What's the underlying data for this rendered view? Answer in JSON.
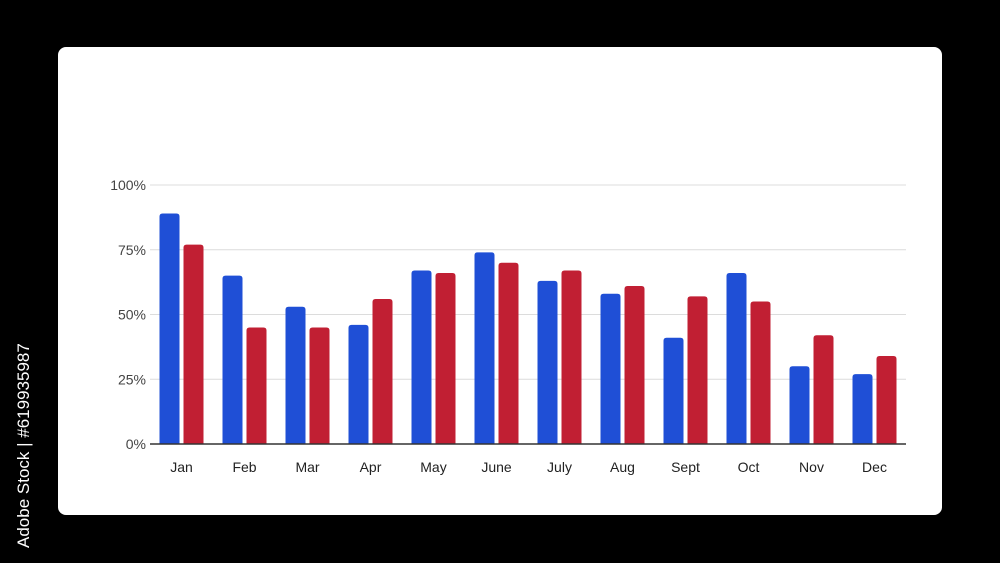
{
  "side_text": "Adobe Stock | #619935987",
  "colors": {
    "background": "#000000",
    "card": "#ffffff",
    "grid": "#dcdcdc",
    "axis": "#333333"
  },
  "chart_data": {
    "type": "bar",
    "categories": [
      "Jan",
      "Feb",
      "Mar",
      "Apr",
      "May",
      "June",
      "July",
      "Aug",
      "Sept",
      "Oct",
      "Nov",
      "Dec"
    ],
    "series": [
      {
        "color": "#1f4fd6",
        "values": [
          89,
          65,
          53,
          46,
          67,
          74,
          63,
          58,
          41,
          66,
          30,
          27
        ]
      },
      {
        "color": "#c11f33",
        "values": [
          77,
          45,
          45,
          56,
          66,
          70,
          67,
          61,
          57,
          55,
          42,
          34
        ]
      }
    ],
    "ylim": [
      0,
      100
    ],
    "yticks": [
      0,
      25,
      50,
      75,
      100
    ],
    "ytick_labels": [
      "0%",
      "25%",
      "50%",
      "75%",
      "100%"
    ],
    "grid": true,
    "legend": "none",
    "title": "",
    "xlabel": "",
    "ylabel": ""
  }
}
